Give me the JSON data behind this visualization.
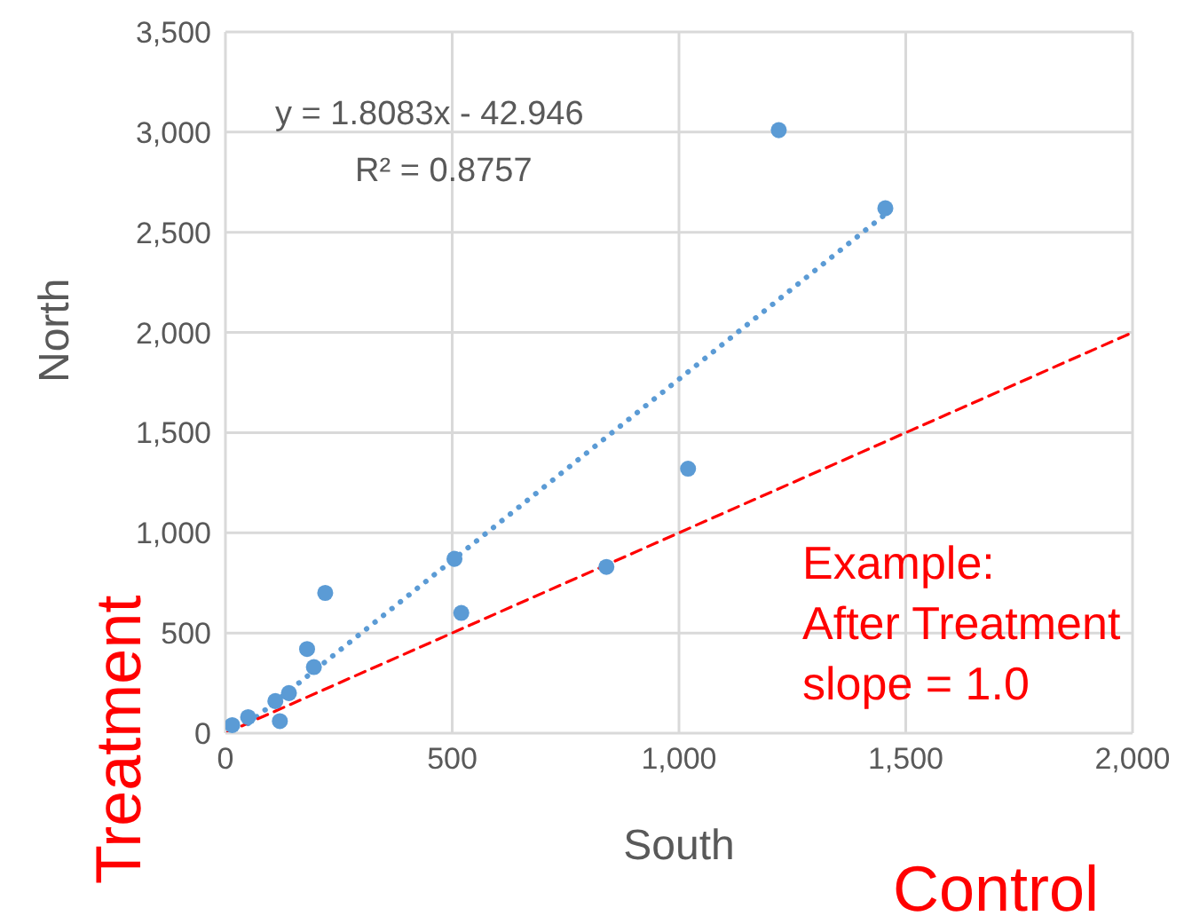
{
  "chart_data": {
    "type": "scatter",
    "xlabel": "South",
    "ylabel": "North",
    "xlim": [
      0,
      2000
    ],
    "xticks": [
      {
        "value": 0,
        "label": "0"
      },
      {
        "value": 500,
        "label": "500"
      },
      {
        "value": 1000,
        "label": "1,000"
      },
      {
        "value": 1500,
        "label": "1,500"
      },
      {
        "value": 2000,
        "label": "2,000"
      }
    ],
    "ylim": [
      0,
      3500
    ],
    "yticks": [
      {
        "value": 0,
        "label": "0"
      },
      {
        "value": 500,
        "label": "500"
      },
      {
        "value": 1000,
        "label": "1,000"
      },
      {
        "value": 1500,
        "label": "1,500"
      },
      {
        "value": 2000,
        "label": "2,000"
      },
      {
        "value": 2500,
        "label": "2,500"
      },
      {
        "value": 3000,
        "label": "3,000"
      },
      {
        "value": 3500,
        "label": "3,500"
      }
    ],
    "grid": true,
    "series": [
      {
        "color": "#5b9bd5",
        "marker": "circle",
        "x": [
          15,
          50,
          110,
          120,
          140,
          180,
          195,
          220,
          505,
          520,
          840,
          1020,
          1220,
          1455
        ],
        "values": [
          40,
          80,
          160,
          60,
          200,
          420,
          330,
          700,
          870,
          600,
          830,
          1320,
          3010,
          2620
        ]
      },
      {
        "type": "line",
        "color": "#5b9bd5",
        "line_style": "dotted",
        "marker": "none",
        "x": [
          50,
          1455
        ],
        "values": [
          48,
          2590
        ]
      },
      {
        "type": "line",
        "color": "#ff0000",
        "line_style": "dashed",
        "marker": "none",
        "x": [
          0,
          2000
        ],
        "values": [
          0,
          2000
        ]
      }
    ],
    "annotations": [
      "y = 1.8083x - 42.946",
      "R² = 0.8757",
      "Example:\nAfter Treatment\nslope = 1.0",
      "Treatment",
      "Control"
    ]
  }
}
